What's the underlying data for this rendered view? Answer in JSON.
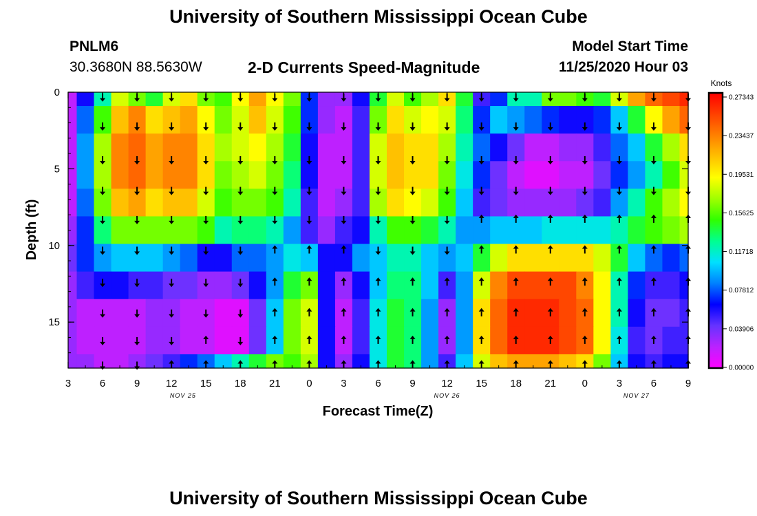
{
  "page": {
    "title": "University of Southern Mississippi Ocean Cube",
    "station": "PNLM6",
    "coords": "30.3680N 88.5630W",
    "subtitle": "2-D Currents Speed-Magnitude",
    "model_start_label": "Model Start Time",
    "model_start_value": "11/25/2020 Hour 03",
    "footer_title": "University of Southern Mississippi Ocean Cube"
  },
  "chart_data": {
    "type": "heatmap",
    "title": "2-D Currents Speed-Magnitude",
    "xlabel": "Forecast Time(Z)",
    "ylabel": "Depth (ft)",
    "x_tick_labels": [
      "3",
      "6",
      "9",
      "12",
      "15",
      "18",
      "21",
      "0",
      "3",
      "6",
      "9",
      "12",
      "15",
      "18",
      "21",
      "0",
      "3",
      "6",
      "9"
    ],
    "x_hours": [
      0,
      3,
      6,
      9,
      12,
      15,
      18,
      21,
      24,
      27,
      30,
      33,
      36,
      39,
      42,
      45,
      48,
      51,
      54
    ],
    "date_labels": [
      {
        "text": "NOV 25",
        "hour": 10
      },
      {
        "text": "NOV 26",
        "hour": 33
      },
      {
        "text": "NOV 27",
        "hour": 49.5
      }
    ],
    "y_ticks": [
      0,
      5,
      10,
      15
    ],
    "ylim": [
      0,
      18
    ],
    "xlim": [
      0,
      54
    ],
    "colorbar": {
      "title": "Knots",
      "labels": [
        "0.27343",
        "0.23437",
        "0.19531",
        "0.15625",
        "0.11718",
        "0.07812",
        "0.03906",
        "0.00000"
      ],
      "min": 0.0,
      "max": 0.27343,
      "colors": [
        "#ff00ff",
        "#bb22ff",
        "#6633ff",
        "#0000ff",
        "#0080ff",
        "#00e0ff",
        "#00ff90",
        "#30ff00",
        "#a0ff00",
        "#ffff00",
        "#ffc000",
        "#ff8000",
        "#ff4000",
        "#ff0000"
      ]
    },
    "grid": {
      "time_cols": 37,
      "time_step_hours": 1.5,
      "depth_rows": 11,
      "depth_ft": [
        0,
        1.8,
        3.6,
        5.4,
        7.2,
        9.0,
        10.8,
        12.6,
        14.4,
        16.2,
        18.0
      ],
      "speed_knots": [
        [
          0.02,
          0.06,
          0.12,
          0.18,
          0.16,
          0.14,
          0.18,
          0.2,
          0.16,
          0.15,
          0.19,
          0.22,
          0.19,
          0.16,
          0.07,
          0.03,
          0.03,
          0.06,
          0.14,
          0.18,
          0.15,
          0.17,
          0.2,
          0.14,
          0.05,
          0.07,
          0.12,
          0.12,
          0.16,
          0.16,
          0.15,
          0.14,
          0.18,
          0.22,
          0.24,
          0.25,
          0.26
        ],
        [
          0.02,
          0.08,
          0.15,
          0.21,
          0.23,
          0.2,
          0.21,
          0.22,
          0.19,
          0.16,
          0.18,
          0.21,
          0.18,
          0.15,
          0.07,
          0.03,
          0.02,
          0.05,
          0.16,
          0.2,
          0.18,
          0.19,
          0.18,
          0.13,
          0.07,
          0.1,
          0.09,
          0.08,
          0.07,
          0.06,
          0.06,
          0.07,
          0.1,
          0.14,
          0.19,
          0.22,
          0.24
        ],
        [
          0.02,
          0.09,
          0.17,
          0.23,
          0.24,
          0.22,
          0.23,
          0.23,
          0.2,
          0.17,
          0.18,
          0.19,
          0.17,
          0.14,
          0.06,
          0.02,
          0.02,
          0.05,
          0.18,
          0.21,
          0.2,
          0.2,
          0.17,
          0.12,
          0.08,
          0.06,
          0.04,
          0.02,
          0.02,
          0.03,
          0.03,
          0.05,
          0.08,
          0.1,
          0.14,
          0.17,
          0.2
        ],
        [
          0.02,
          0.09,
          0.17,
          0.23,
          0.24,
          0.22,
          0.23,
          0.23,
          0.2,
          0.16,
          0.17,
          0.18,
          0.16,
          0.13,
          0.06,
          0.02,
          0.02,
          0.05,
          0.18,
          0.21,
          0.2,
          0.2,
          0.16,
          0.11,
          0.07,
          0.04,
          0.02,
          0.01,
          0.01,
          0.02,
          0.02,
          0.04,
          0.07,
          0.09,
          0.12,
          0.15,
          0.18
        ],
        [
          0.02,
          0.08,
          0.16,
          0.21,
          0.22,
          0.2,
          0.21,
          0.21,
          0.18,
          0.15,
          0.16,
          0.16,
          0.15,
          0.12,
          0.05,
          0.02,
          0.03,
          0.05,
          0.17,
          0.2,
          0.19,
          0.18,
          0.15,
          0.1,
          0.05,
          0.04,
          0.03,
          0.03,
          0.03,
          0.03,
          0.04,
          0.05,
          0.09,
          0.12,
          0.15,
          0.17,
          0.19
        ],
        [
          0.03,
          0.07,
          0.13,
          0.16,
          0.16,
          0.16,
          0.16,
          0.16,
          0.15,
          0.12,
          0.13,
          0.13,
          0.12,
          0.09,
          0.05,
          0.03,
          0.05,
          0.06,
          0.12,
          0.15,
          0.15,
          0.14,
          0.12,
          0.09,
          0.09,
          0.1,
          0.1,
          0.1,
          0.11,
          0.11,
          0.11,
          0.11,
          0.12,
          0.14,
          0.15,
          0.16,
          0.17
        ],
        [
          0.04,
          0.07,
          0.09,
          0.1,
          0.1,
          0.1,
          0.09,
          0.08,
          0.06,
          0.06,
          0.08,
          0.08,
          0.09,
          0.11,
          0.1,
          0.06,
          0.06,
          0.09,
          0.1,
          0.12,
          0.12,
          0.1,
          0.09,
          0.1,
          0.14,
          0.18,
          0.2,
          0.2,
          0.2,
          0.2,
          0.2,
          0.18,
          0.14,
          0.1,
          0.08,
          0.07,
          0.08
        ],
        [
          0.03,
          0.05,
          0.06,
          0.06,
          0.05,
          0.05,
          0.04,
          0.04,
          0.03,
          0.03,
          0.04,
          0.06,
          0.09,
          0.14,
          0.16,
          0.06,
          0.03,
          0.06,
          0.1,
          0.13,
          0.13,
          0.1,
          0.05,
          0.09,
          0.18,
          0.23,
          0.25,
          0.25,
          0.25,
          0.25,
          0.23,
          0.19,
          0.12,
          0.07,
          0.05,
          0.05,
          0.06
        ],
        [
          0.03,
          0.02,
          0.02,
          0.02,
          0.02,
          0.03,
          0.03,
          0.02,
          0.02,
          0.01,
          0.01,
          0.04,
          0.1,
          0.16,
          0.18,
          0.06,
          0.02,
          0.05,
          0.11,
          0.14,
          0.13,
          0.09,
          0.03,
          0.09,
          0.2,
          0.24,
          0.26,
          0.26,
          0.26,
          0.25,
          0.24,
          0.19,
          0.12,
          0.06,
          0.04,
          0.04,
          0.05
        ],
        [
          0.03,
          0.02,
          0.02,
          0.02,
          0.02,
          0.03,
          0.03,
          0.02,
          0.02,
          0.01,
          0.01,
          0.04,
          0.1,
          0.16,
          0.18,
          0.06,
          0.02,
          0.05,
          0.11,
          0.14,
          0.13,
          0.09,
          0.03,
          0.09,
          0.2,
          0.24,
          0.26,
          0.26,
          0.26,
          0.25,
          0.24,
          0.19,
          0.11,
          0.05,
          0.04,
          0.05,
          0.05
        ],
        [
          0.03,
          0.03,
          0.02,
          0.02,
          0.03,
          0.04,
          0.05,
          0.07,
          0.08,
          0.1,
          0.12,
          0.14,
          0.16,
          0.15,
          0.17,
          0.06,
          0.03,
          0.06,
          0.11,
          0.14,
          0.13,
          0.09,
          0.05,
          0.1,
          0.18,
          0.21,
          0.22,
          0.22,
          0.22,
          0.21,
          0.2,
          0.16,
          0.1,
          0.06,
          0.05,
          0.06,
          0.06
        ]
      ]
    },
    "vectors": {
      "times_hours": [
        3,
        6,
        9,
        12,
        15,
        18,
        21,
        24,
        27,
        30,
        33,
        36,
        39,
        42,
        45,
        48,
        51,
        54
      ],
      "depths_ft": [
        0.3,
        2.2,
        4.4,
        6.4,
        8.3,
        10.3,
        12.4,
        14.4,
        16.2,
        17.8
      ],
      "directions": [
        "SSSSSSSSSSSSSSSSSS",
        "SSSSSSSSSSSSSSSSSS",
        "SSSSSSSSSSSSSSSSSS",
        "SSSSSSSSSSSSSSSSSS",
        "SSSSSSSSSSSNNNNNNN",
        "SSSSSNNNSSSNNNNNNN",
        "SSSSSNNNNNNNNNNNNN",
        "SSSSSNNNNNNNNNNNNN",
        "SSSNSNNNNNNNNNNNNN",
        "SSNNNNNNNNNNNNNNNN"
      ]
    }
  }
}
